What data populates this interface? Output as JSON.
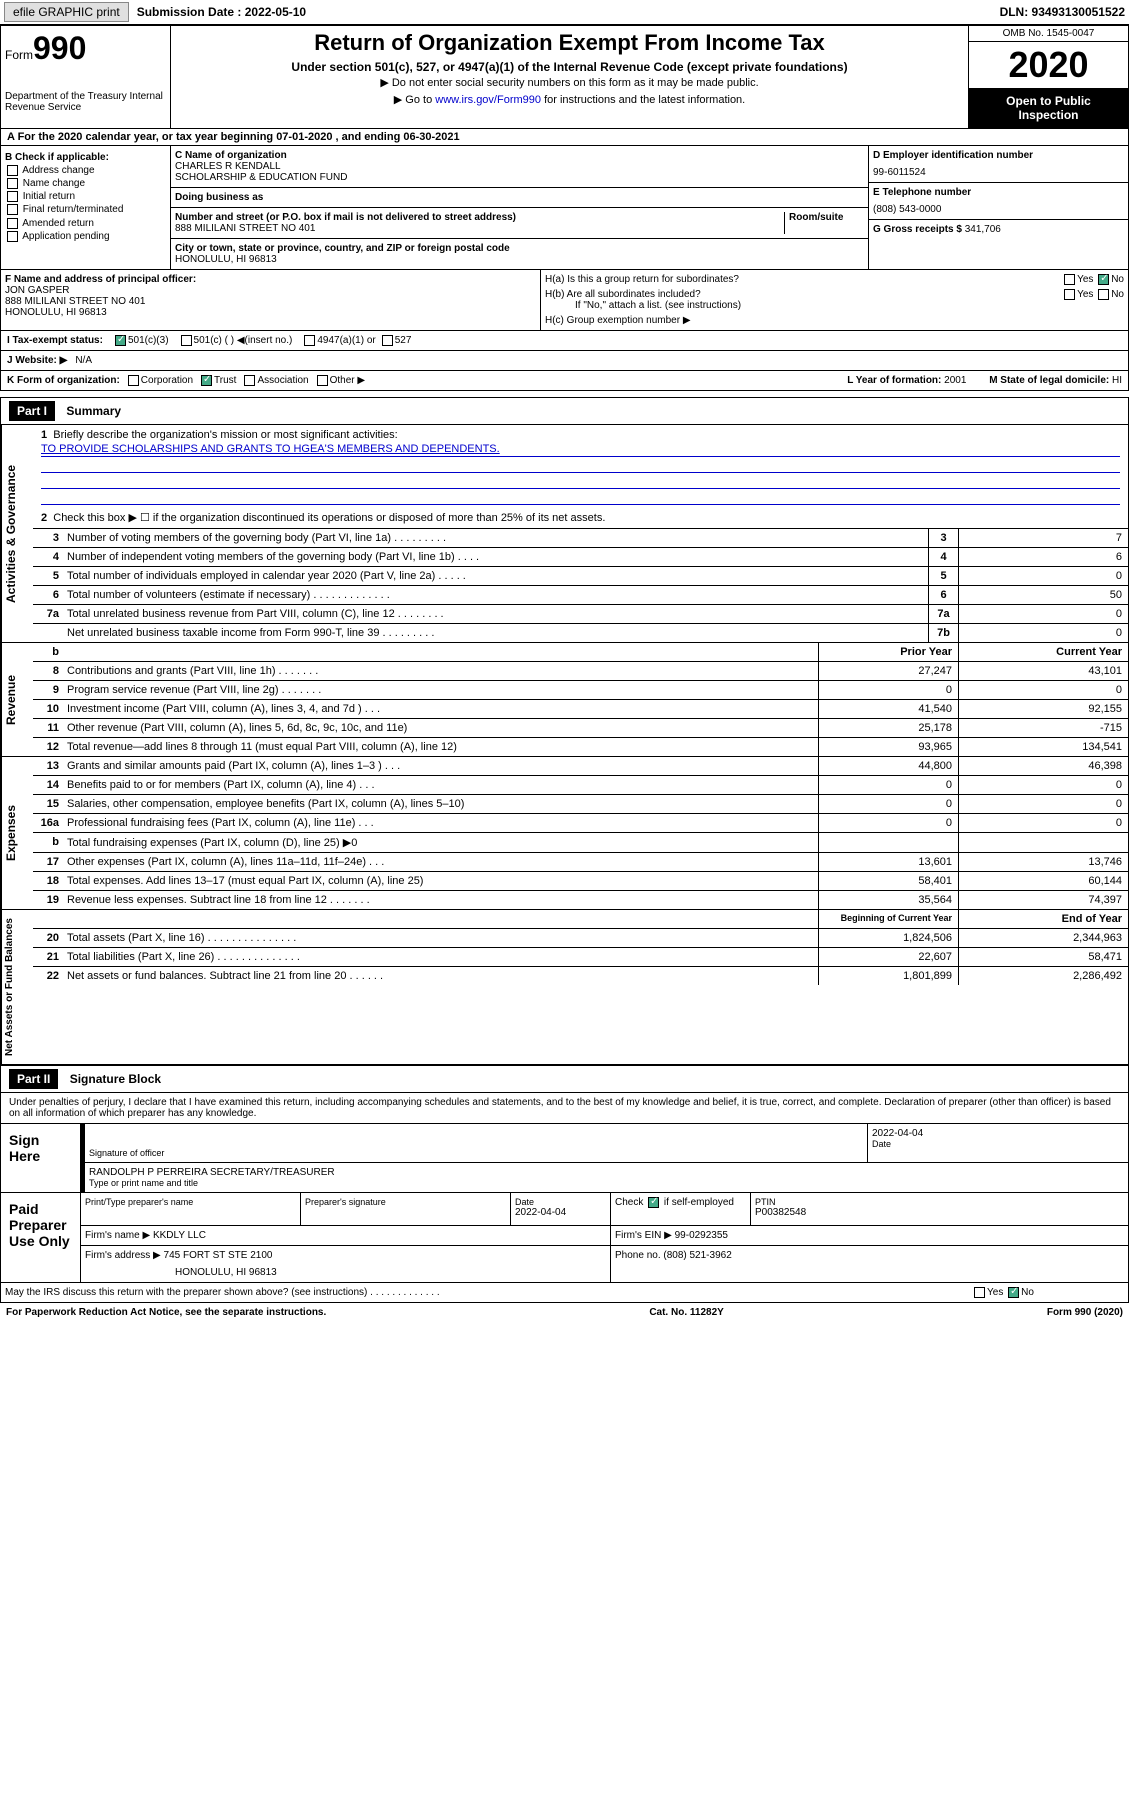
{
  "topbar": {
    "efile": "efile GRAPHIC print",
    "submission_label": "Submission Date : 2022-05-10",
    "dln": "DLN: 93493130051522"
  },
  "header": {
    "form_word": "Form",
    "form_num": "990",
    "dept": "Department of the Treasury\nInternal Revenue Service",
    "title": "Return of Organization Exempt From Income Tax",
    "sub1": "Under section 501(c), 527, or 4947(a)(1) of the Internal Revenue Code (except private foundations)",
    "sub2": "▶ Do not enter social security numbers on this form as it may be made public.",
    "sub3_pre": "▶ Go to ",
    "sub3_link": "www.irs.gov/Form990",
    "sub3_post": " for instructions and the latest information.",
    "omb": "OMB No. 1545-0047",
    "year": "2020",
    "inspect1": "Open to Public",
    "inspect2": "Inspection"
  },
  "rowA": "A For the 2020 calendar year, or tax year beginning 07-01-2020    , and ending 06-30-2021",
  "sectionB": {
    "title": "B Check if applicable:",
    "opts": [
      "Address change",
      "Name change",
      "Initial return",
      "Final return/terminated",
      "Amended return",
      "Application pending"
    ]
  },
  "sectionC": {
    "name_lbl": "C Name of organization",
    "name": "CHARLES R KENDALL\nSCHOLARSHIP & EDUCATION FUND",
    "dba_lbl": "Doing business as",
    "dba": "",
    "addr_lbl": "Number and street (or P.O. box if mail is not delivered to street address)",
    "addr": "888 MILILANI STREET NO 401",
    "room_lbl": "Room/suite",
    "city_lbl": "City or town, state or province, country, and ZIP or foreign postal code",
    "city": "HONOLULU, HI  96813"
  },
  "sectionD": {
    "ein_lbl": "D Employer identification number",
    "ein": "99-6011524",
    "phone_lbl": "E Telephone number",
    "phone": "(808) 543-0000",
    "gross_lbl": "G Gross receipts $ ",
    "gross": "341,706"
  },
  "sectionF": {
    "lbl": "F Name and address of principal officer:",
    "name": "JON GASPER",
    "addr1": "888 MILILANI STREET NO 401",
    "addr2": "HONOLULU, HI  96813"
  },
  "sectionH": {
    "ha": "H(a)  Is this a group return for subordinates?",
    "hb": "H(b)  Are all subordinates included?",
    "hb_note": "If \"No,\" attach a list. (see instructions)",
    "hc": "H(c)  Group exemption number ▶",
    "yes": "Yes",
    "no": "No"
  },
  "statusRow": {
    "lbl": "I   Tax-exempt status:",
    "o1": "501(c)(3)",
    "o2": "501(c) (  ) ◀(insert no.)",
    "o3": "4947(a)(1) or",
    "o4": "527"
  },
  "websiteRow": {
    "lbl": "J   Website: ▶",
    "val": "N/A"
  },
  "korg": {
    "lbl": "K Form of organization:",
    "o1": "Corporation",
    "o2": "Trust",
    "o3": "Association",
    "o4": "Other ▶",
    "year_lbl": "L Year of formation: ",
    "year": "2001",
    "state_lbl": "M State of legal domicile: ",
    "state": "HI"
  },
  "part1": {
    "hdr": "Part I",
    "title": "Summary",
    "line1_lbl": "Briefly describe the organization's mission or most significant activities:",
    "line1_val": "TO PROVIDE SCHOLARSHIPS AND GRANTS TO HGEA'S MEMBERS AND DEPENDENTS.",
    "line2": "Check this box ▶ ☐  if the organization discontinued its operations or disposed of more than 25% of its net assets.",
    "vert_gov": "Activities & Governance",
    "vert_rev": "Revenue",
    "vert_exp": "Expenses",
    "vert_net": "Net Assets or Fund Balances",
    "lines_gov": [
      {
        "n": "3",
        "t": "Number of voting members of the governing body (Part VI, line 1a)  .  .  .  .  .  .  .  .  .",
        "b": "3",
        "v": "7"
      },
      {
        "n": "4",
        "t": "Number of independent voting members of the governing body (Part VI, line 1b)  .  .  .  .",
        "b": "4",
        "v": "6"
      },
      {
        "n": "5",
        "t": "Total number of individuals employed in calendar year 2020 (Part V, line 2a)  .  .  .  .  .",
        "b": "5",
        "v": "0"
      },
      {
        "n": "6",
        "t": "Total number of volunteers (estimate if necessary)  .  .  .  .  .  .  .  .  .  .  .  .  .",
        "b": "6",
        "v": "50"
      },
      {
        "n": "7a",
        "t": "Total unrelated business revenue from Part VIII, column (C), line 12  .  .  .  .  .  .  .  .",
        "b": "7a",
        "v": "0"
      },
      {
        "n": "",
        "t": "Net unrelated business taxable income from Form 990-T, line 39  .  .  .  .  .  .  .  .  .",
        "b": "7b",
        "v": "0"
      }
    ],
    "col_prior": "Prior Year",
    "col_curr": "Current Year",
    "lines_rev": [
      {
        "n": "8",
        "t": "Contributions and grants (Part VIII, line 1h)  .  .  .  .  .  .  .",
        "p": "27,247",
        "c": "43,101"
      },
      {
        "n": "9",
        "t": "Program service revenue (Part VIII, line 2g)  .  .  .  .  .  .  .",
        "p": "0",
        "c": "0"
      },
      {
        "n": "10",
        "t": "Investment income (Part VIII, column (A), lines 3, 4, and 7d )  .  .  .",
        "p": "41,540",
        "c": "92,155"
      },
      {
        "n": "11",
        "t": "Other revenue (Part VIII, column (A), lines 5, 6d, 8c, 9c, 10c, and 11e)",
        "p": "25,178",
        "c": "-715"
      },
      {
        "n": "12",
        "t": "Total revenue—add lines 8 through 11 (must equal Part VIII, column (A), line 12)",
        "p": "93,965",
        "c": "134,541"
      }
    ],
    "lines_exp": [
      {
        "n": "13",
        "t": "Grants and similar amounts paid (Part IX, column (A), lines 1–3 )  .  .  .",
        "p": "44,800",
        "c": "46,398"
      },
      {
        "n": "14",
        "t": "Benefits paid to or for members (Part IX, column (A), line 4)  .  .  .",
        "p": "0",
        "c": "0"
      },
      {
        "n": "15",
        "t": "Salaries, other compensation, employee benefits (Part IX, column (A), lines 5–10)",
        "p": "0",
        "c": "0"
      },
      {
        "n": "16a",
        "t": "Professional fundraising fees (Part IX, column (A), line 11e)  .  .  .",
        "p": "0",
        "c": "0"
      },
      {
        "n": "b",
        "t": "Total fundraising expenses (Part IX, column (D), line 25) ▶0",
        "p": "",
        "c": ""
      },
      {
        "n": "17",
        "t": "Other expenses (Part IX, column (A), lines 11a–11d, 11f–24e)  .  .  .",
        "p": "13,601",
        "c": "13,746"
      },
      {
        "n": "18",
        "t": "Total expenses. Add lines 13–17 (must equal Part IX, column (A), line 25)",
        "p": "58,401",
        "c": "60,144"
      },
      {
        "n": "19",
        "t": "Revenue less expenses. Subtract line 18 from line 12  .  .  .  .  .  .  .",
        "p": "35,564",
        "c": "74,397"
      }
    ],
    "col_boy": "Beginning of Current Year",
    "col_eoy": "End of Year",
    "lines_net": [
      {
        "n": "20",
        "t": "Total assets (Part X, line 16)  .  .  .  .  .  .  .  .  .  .  .  .  .  .  .",
        "p": "1,824,506",
        "c": "2,344,963"
      },
      {
        "n": "21",
        "t": "Total liabilities (Part X, line 26)  .  .  .  .  .  .  .  .  .  .  .  .  .  .",
        "p": "22,607",
        "c": "58,471"
      },
      {
        "n": "22",
        "t": "Net assets or fund balances. Subtract line 21 from line 20  .  .  .  .  .  .",
        "p": "1,801,899",
        "c": "2,286,492"
      }
    ]
  },
  "part2": {
    "hdr": "Part II",
    "title": "Signature Block",
    "declare": "Under penalties of perjury, I declare that I have examined this return, including accompanying schedules and statements, and to the best of my knowledge and belief, it is true, correct, and complete. Declaration of preparer (other than officer) is based on all information of which preparer has any knowledge.",
    "sign_here": "Sign Here",
    "sig_officer": "Signature of officer",
    "date": "Date",
    "sig_date": "2022-04-04",
    "officer_name": "RANDOLPH P PERREIRA  SECRETARY/TREASURER",
    "type_name": "Type or print name and title",
    "paid": "Paid Preparer Use Only",
    "prep_name_lbl": "Print/Type preparer's name",
    "prep_sig_lbl": "Preparer's signature",
    "prep_date_lbl": "Date",
    "prep_date": "2022-04-04",
    "check_if": "Check",
    "check_if2": "if self-employed",
    "ptin_lbl": "PTIN",
    "ptin": "P00382548",
    "firm_name_lbl": "Firm's name    ▶",
    "firm_name": "KKDLY LLC",
    "firm_ein_lbl": "Firm's EIN ▶",
    "firm_ein": "99-0292355",
    "firm_addr_lbl": "Firm's address ▶",
    "firm_addr1": "745 FORT ST STE 2100",
    "firm_addr2": "HONOLULU, HI  96813",
    "firm_phone_lbl": "Phone no. ",
    "firm_phone": "(808) 521-3962",
    "discuss": "May the IRS discuss this return with the preparer shown above? (see instructions)  .  .  .  .  .  .  .  .  .  .  .  .  ."
  },
  "footer": {
    "left": "For Paperwork Reduction Act Notice, see the separate instructions.",
    "mid": "Cat. No. 11282Y",
    "right": "Form 990 (2020)"
  }
}
